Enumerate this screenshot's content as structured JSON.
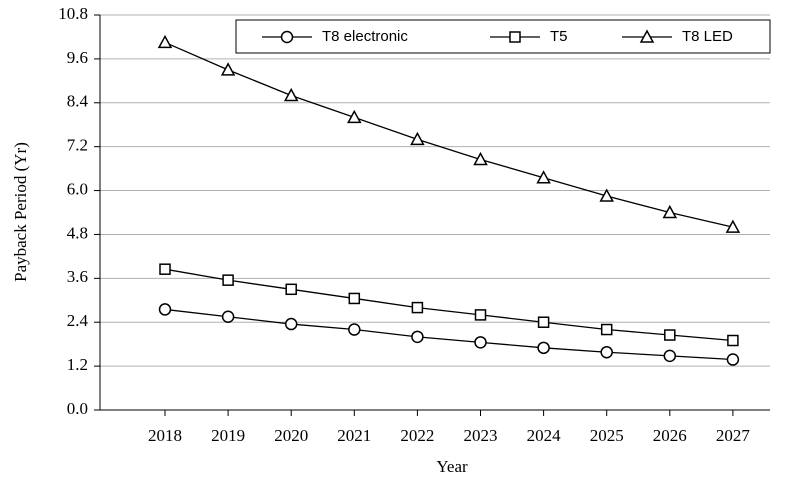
{
  "chart_data": {
    "type": "line",
    "x_label": "Year",
    "y_label": "Payback Period (Yr)",
    "categories": [
      "2018",
      "2019",
      "2020",
      "2021",
      "2022",
      "2023",
      "2024",
      "2025",
      "2026",
      "2027"
    ],
    "series": [
      {
        "name": "T8 electronic",
        "color": "#000000",
        "marker": "circle",
        "values": [
          2.75,
          2.55,
          2.35,
          2.2,
          2.0,
          1.85,
          1.7,
          1.58,
          1.48,
          1.38
        ]
      },
      {
        "name": "T5",
        "color": "#000000",
        "marker": "square",
        "values": [
          3.85,
          3.55,
          3.3,
          3.05,
          2.8,
          2.6,
          2.4,
          2.2,
          2.05,
          1.9
        ]
      },
      {
        "name": "T8 LED",
        "color": "#000000",
        "marker": "triangle",
        "values": [
          10.05,
          9.3,
          8.6,
          8.0,
          7.4,
          6.85,
          6.35,
          5.85,
          5.4,
          5.0
        ]
      }
    ],
    "ylim": [
      0,
      10.8
    ],
    "yticks": [
      {
        "value": 0,
        "label": "0.0"
      },
      1.2,
      2.4,
      3.6,
      4.8,
      {
        "value": 6,
        "label": "6.0"
      },
      7.2,
      8.4,
      9.6,
      10.8
    ],
    "grid": true,
    "legend": "top"
  }
}
